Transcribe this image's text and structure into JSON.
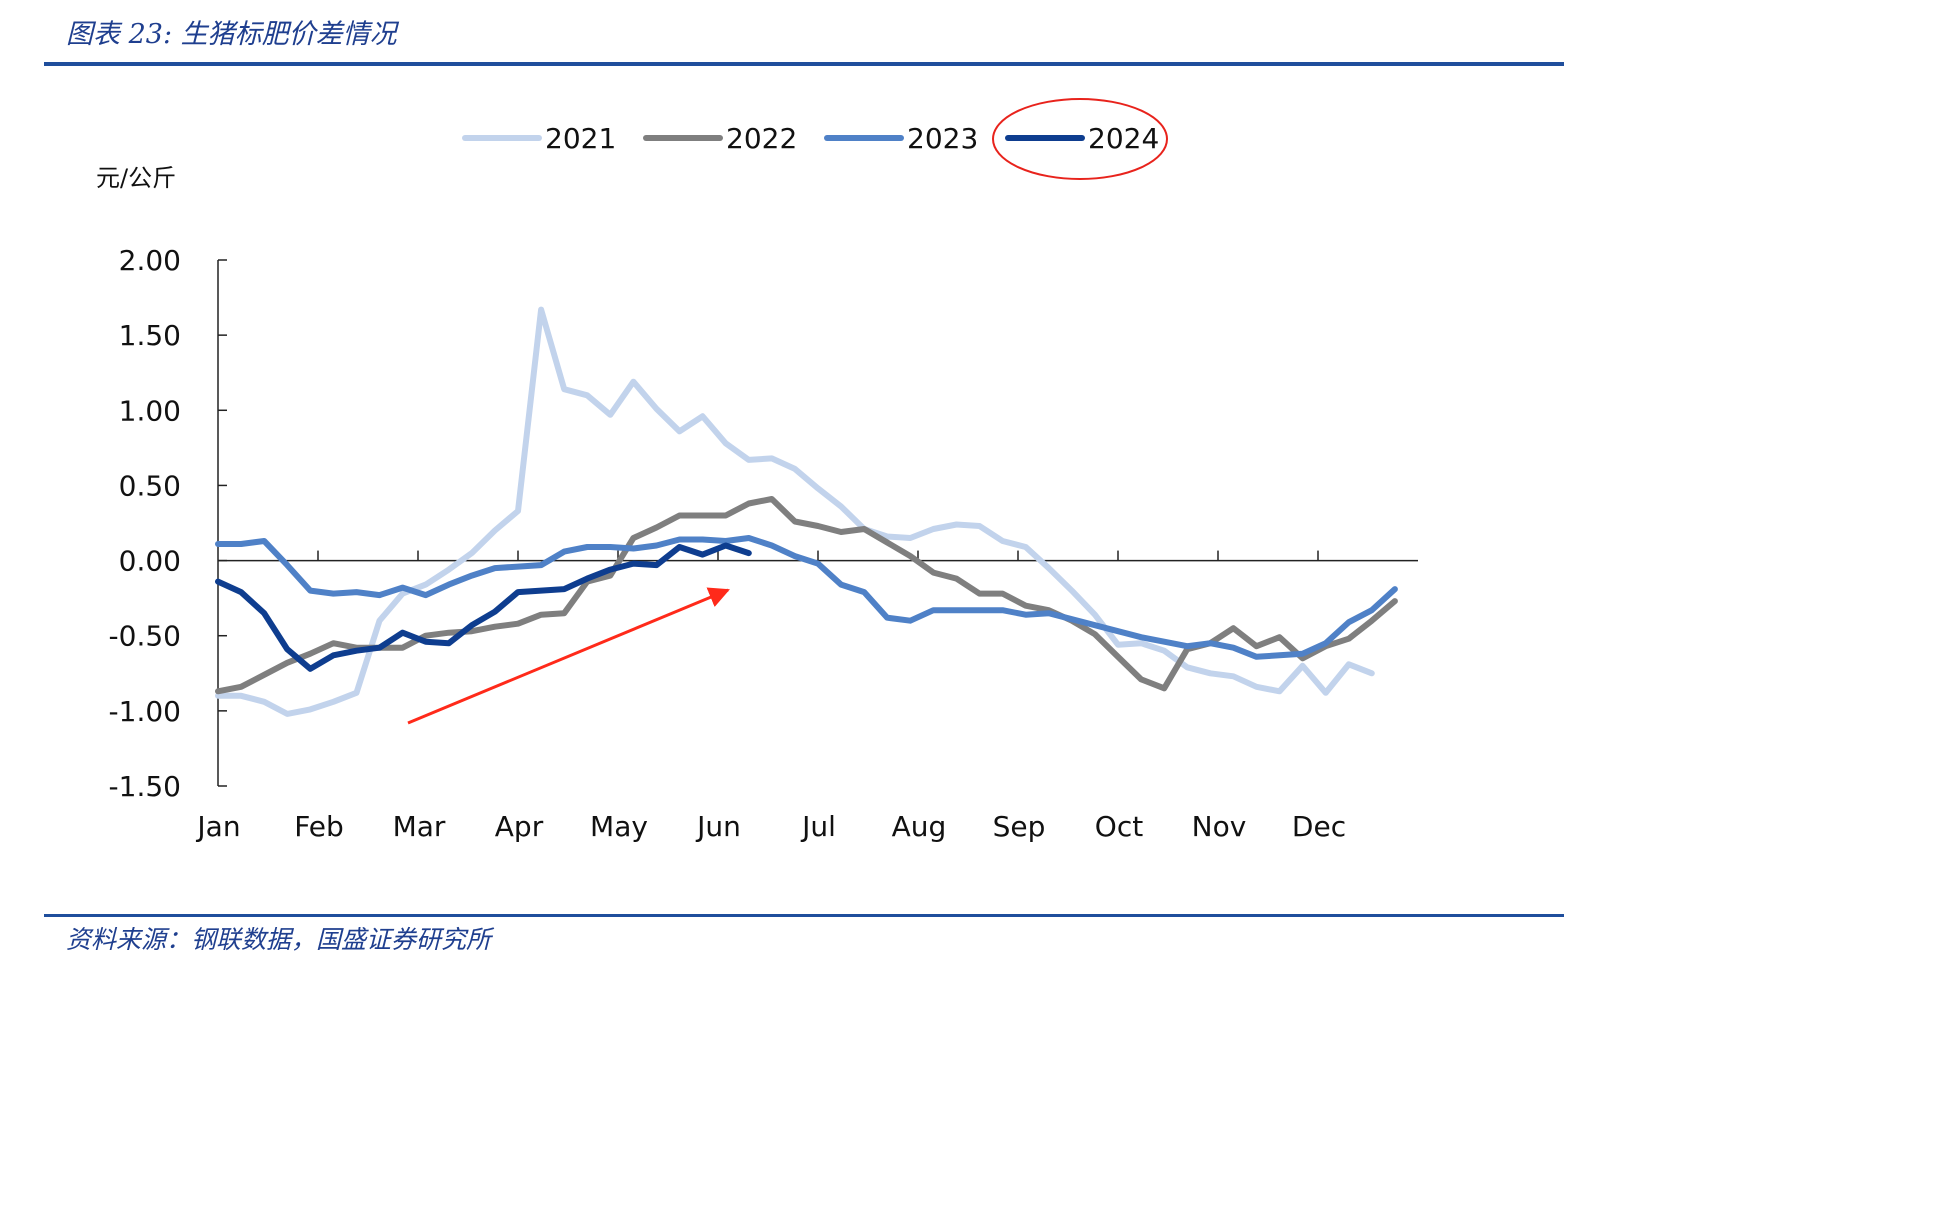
{
  "header": {
    "title": "图表 23:  生猪标肥价差情况"
  },
  "footer": {
    "source": "资料来源：钢联数据，国盛证券研究所"
  },
  "chart_data": {
    "type": "line",
    "title": "生猪标肥价差情况",
    "ylabel": "元/公斤",
    "xlabel": "",
    "ylim": [
      -1.5,
      2.0
    ],
    "yticks": [
      "2.00",
      "1.50",
      "1.00",
      "0.50",
      "0.00",
      "-0.50",
      "-1.00",
      "-1.50"
    ],
    "ytick_values": [
      2.0,
      1.5,
      1.0,
      0.5,
      0.0,
      -0.5,
      -1.0,
      -1.5
    ],
    "month_labels": [
      "Jan",
      "Feb",
      "Mar",
      "Apr",
      "May",
      "Jun",
      "Jul",
      "Aug",
      "Sep",
      "Oct",
      "Nov",
      "Dec"
    ],
    "x_unit": "week (0 = start of Jan, 52 = end of Dec)",
    "x_range": [
      0,
      52
    ],
    "legend_position": "top-center",
    "annotations": [
      "red arrow indicating upward trend in 2024",
      "red ellipse highlighting 2024 legend entry"
    ],
    "colors": {
      "arrow": "#ff2a1a",
      "ellipse": "#e8231c",
      "axis": "#222222"
    },
    "series": [
      {
        "name": "2021",
        "color": "#c2d3ec",
        "width": 6,
        "x": [
          0,
          1,
          2,
          3,
          4,
          5,
          6,
          7,
          8,
          9,
          10,
          11,
          12,
          13,
          14,
          15,
          16,
          17,
          18,
          19,
          20,
          21,
          22,
          23,
          24,
          25,
          26,
          27,
          28,
          29,
          30,
          31,
          32,
          33,
          34,
          35,
          36,
          37,
          38,
          39,
          40,
          41,
          42,
          43,
          44,
          45,
          46,
          47,
          48,
          49,
          50,
          51,
          52
        ],
        "values": [
          -0.9,
          -0.9,
          -0.94,
          -1.02,
          -0.99,
          -0.94,
          -0.88,
          -0.4,
          -0.22,
          -0.16,
          -0.06,
          0.05,
          0.2,
          0.33,
          1.67,
          1.14,
          1.1,
          0.97,
          1.19,
          1.01,
          0.86,
          0.96,
          0.78,
          0.67,
          0.68,
          0.61,
          0.48,
          0.36,
          0.21,
          0.16,
          0.15,
          0.21,
          0.24,
          0.23,
          0.13,
          0.09,
          -0.05,
          -0.2,
          -0.36,
          -0.56,
          -0.55,
          -0.6,
          -0.71,
          -0.75,
          -0.77,
          -0.84,
          -0.87,
          -0.7,
          -0.88,
          -0.69,
          -0.75,
          null,
          null
        ]
      },
      {
        "name": "2022",
        "color": "#7f7f7f",
        "width": 6,
        "x": [
          0,
          1,
          2,
          3,
          4,
          5,
          6,
          7,
          8,
          9,
          10,
          11,
          12,
          13,
          14,
          15,
          16,
          17,
          18,
          19,
          20,
          21,
          22,
          23,
          24,
          25,
          26,
          27,
          28,
          29,
          30,
          31,
          32,
          33,
          34,
          35,
          36,
          37,
          38,
          39,
          40,
          41,
          42,
          43,
          44,
          45,
          46,
          47,
          48,
          49,
          50,
          51,
          52
        ],
        "values": [
          -0.87,
          -0.84,
          -0.76,
          -0.68,
          -0.62,
          -0.55,
          -0.58,
          -0.58,
          -0.58,
          -0.5,
          -0.48,
          -0.47,
          -0.44,
          -0.42,
          -0.36,
          -0.35,
          -0.14,
          -0.1,
          0.15,
          0.22,
          0.3,
          0.3,
          0.3,
          0.38,
          0.41,
          0.26,
          0.23,
          0.19,
          0.21,
          0.12,
          0.03,
          -0.08,
          -0.12,
          -0.22,
          -0.22,
          -0.3,
          -0.33,
          -0.4,
          -0.49,
          -0.64,
          -0.79,
          -0.85,
          -0.59,
          -0.55,
          -0.45,
          -0.57,
          -0.51,
          -0.65,
          -0.57,
          -0.52,
          -0.4,
          -0.27,
          null
        ]
      },
      {
        "name": "2023",
        "color": "#4f81c7",
        "width": 6,
        "x": [
          0,
          1,
          2,
          3,
          4,
          5,
          6,
          7,
          8,
          9,
          10,
          11,
          12,
          13,
          14,
          15,
          16,
          17,
          18,
          19,
          20,
          21,
          22,
          23,
          24,
          25,
          26,
          27,
          28,
          29,
          30,
          31,
          32,
          33,
          34,
          35,
          36,
          37,
          38,
          39,
          40,
          41,
          42,
          43,
          44,
          45,
          46,
          47,
          48,
          49,
          50,
          51,
          52
        ],
        "values": [
          0.11,
          0.11,
          0.13,
          -0.03,
          -0.2,
          -0.22,
          -0.21,
          -0.23,
          -0.18,
          -0.23,
          -0.16,
          -0.1,
          -0.05,
          -0.04,
          -0.03,
          0.06,
          0.09,
          0.09,
          0.08,
          0.1,
          0.14,
          0.14,
          0.13,
          0.15,
          0.1,
          0.03,
          -0.02,
          -0.16,
          -0.21,
          -0.38,
          -0.4,
          -0.33,
          -0.33,
          -0.33,
          -0.33,
          -0.36,
          -0.35,
          -0.39,
          -0.43,
          -0.47,
          -0.51,
          -0.54,
          -0.57,
          -0.55,
          -0.58,
          -0.64,
          -0.63,
          -0.62,
          -0.55,
          -0.41,
          -0.33,
          -0.19,
          null
        ]
      },
      {
        "name": "2024",
        "color": "#0e3d8f",
        "width": 6,
        "x": [
          0,
          1,
          2,
          3,
          4,
          5,
          6,
          7,
          8,
          9,
          10,
          11,
          12,
          13,
          14,
          15,
          16,
          17,
          18,
          19,
          20,
          21,
          22,
          23
        ],
        "values": [
          -0.14,
          -0.21,
          -0.35,
          -0.59,
          -0.72,
          -0.63,
          -0.6,
          -0.58,
          -0.48,
          -0.54,
          -0.55,
          -0.43,
          -0.34,
          -0.21,
          -0.2,
          -0.19,
          -0.12,
          -0.06,
          -0.02,
          -0.03,
          0.09,
          0.04,
          0.1,
          0.05
        ]
      }
    ]
  }
}
